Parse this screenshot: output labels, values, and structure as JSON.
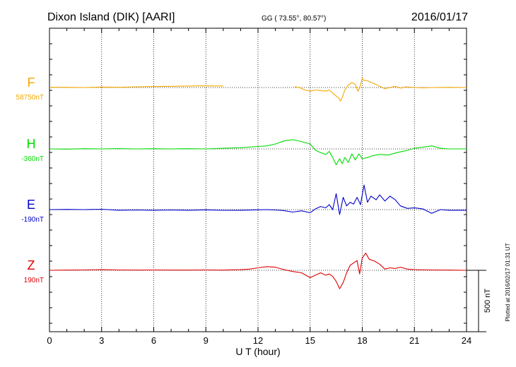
{
  "header": {
    "station": "Dixon Island (DIK)  [AARI]",
    "coords": "GG ( 73.55°,  80.57°)",
    "date": "2016/01/17"
  },
  "footer": {
    "plotted": "Plotted at 2016/02/17 01:31  UT"
  },
  "chart_data": {
    "type": "line",
    "xlabel": "U T (hour)",
    "xlim": [
      0,
      24
    ],
    "xticks": [
      0,
      3,
      6,
      9,
      12,
      15,
      18,
      21,
      24
    ],
    "grid": true,
    "scale_bar": {
      "label": "500 nT",
      "value": 500
    },
    "colors": {
      "F": "#f5a800",
      "H": "#00dd00",
      "E": "#0000cc",
      "Z": "#dd0000"
    },
    "series": [
      {
        "name": "F",
        "baseline": "58750nT",
        "gaps": [
          [
            10.0,
            14.1
          ]
        ],
        "points": [
          [
            0,
            2
          ],
          [
            1,
            2
          ],
          [
            2,
            0
          ],
          [
            3,
            4
          ],
          [
            4,
            2
          ],
          [
            5,
            6
          ],
          [
            6,
            8
          ],
          [
            7,
            10
          ],
          [
            8,
            12
          ],
          [
            9,
            14
          ],
          [
            10,
            12
          ],
          [
            14.1,
            8
          ],
          [
            14.4,
            -2
          ],
          [
            14.7,
            -20
          ],
          [
            15.0,
            -30
          ],
          [
            15.3,
            -20
          ],
          [
            15.6,
            -25
          ],
          [
            15.9,
            -30
          ],
          [
            16.1,
            -20
          ],
          [
            16.3,
            -45
          ],
          [
            16.5,
            -70
          ],
          [
            16.65,
            -85
          ],
          [
            16.75,
            -110
          ],
          [
            16.85,
            -80
          ],
          [
            17.0,
            -20
          ],
          [
            17.2,
            20
          ],
          [
            17.4,
            40
          ],
          [
            17.6,
            25
          ],
          [
            17.75,
            -30
          ],
          [
            17.85,
            -5
          ],
          [
            18.0,
            75
          ],
          [
            18.1,
            55
          ],
          [
            18.2,
            60
          ],
          [
            18.4,
            48
          ],
          [
            18.6,
            35
          ],
          [
            18.8,
            25
          ],
          [
            19.0,
            10
          ],
          [
            19.3,
            -10
          ],
          [
            19.6,
            0
          ],
          [
            19.9,
            10
          ],
          [
            20.2,
            -5
          ],
          [
            20.5,
            5
          ],
          [
            21.0,
            0
          ],
          [
            21.5,
            -3
          ],
          [
            22.0,
            0
          ],
          [
            23.0,
            2
          ],
          [
            24,
            0
          ]
        ]
      },
      {
        "name": "H",
        "baseline": "-360nT",
        "points": [
          [
            0,
            0
          ],
          [
            1,
            -2
          ],
          [
            2,
            2
          ],
          [
            3,
            0
          ],
          [
            4,
            3
          ],
          [
            5,
            0
          ],
          [
            6,
            2
          ],
          [
            7,
            0
          ],
          [
            8,
            2
          ],
          [
            9,
            0
          ],
          [
            10,
            5
          ],
          [
            11,
            10
          ],
          [
            12,
            20
          ],
          [
            12.5,
            25
          ],
          [
            13,
            40
          ],
          [
            13.5,
            65
          ],
          [
            14,
            75
          ],
          [
            14.5,
            60
          ],
          [
            15,
            40
          ],
          [
            15.3,
            -10
          ],
          [
            15.6,
            -30
          ],
          [
            15.9,
            -45
          ],
          [
            16.1,
            -20
          ],
          [
            16.3,
            -70
          ],
          [
            16.5,
            -130
          ],
          [
            16.7,
            -80
          ],
          [
            16.85,
            -120
          ],
          [
            17.0,
            -70
          ],
          [
            17.2,
            -110
          ],
          [
            17.4,
            -40
          ],
          [
            17.6,
            -90
          ],
          [
            17.8,
            -40
          ],
          [
            18.0,
            -80
          ],
          [
            18.3,
            -70
          ],
          [
            18.6,
            -55
          ],
          [
            19.0,
            -45
          ],
          [
            19.5,
            -50
          ],
          [
            20.0,
            -30
          ],
          [
            20.5,
            -15
          ],
          [
            21.0,
            5
          ],
          [
            21.5,
            15
          ],
          [
            22.0,
            25
          ],
          [
            22.5,
            5
          ],
          [
            23.0,
            0
          ],
          [
            24,
            0
          ]
        ]
      },
      {
        "name": "E",
        "baseline": "-190nT",
        "points": [
          [
            0,
            0
          ],
          [
            1,
            2
          ],
          [
            2,
            0
          ],
          [
            3,
            3
          ],
          [
            4,
            -5
          ],
          [
            5,
            -3
          ],
          [
            6,
            -5
          ],
          [
            7,
            -3
          ],
          [
            8,
            -5
          ],
          [
            9,
            -2
          ],
          [
            10,
            -6
          ],
          [
            11,
            -5
          ],
          [
            12,
            -2
          ],
          [
            12.5,
            0
          ],
          [
            13,
            -3
          ],
          [
            13.5,
            -8
          ],
          [
            14,
            -20
          ],
          [
            14.5,
            -10
          ],
          [
            15,
            -25
          ],
          [
            15.3,
            5
          ],
          [
            15.6,
            25
          ],
          [
            15.9,
            15
          ],
          [
            16.1,
            40
          ],
          [
            16.3,
            0
          ],
          [
            16.5,
            130
          ],
          [
            16.7,
            -40
          ],
          [
            16.9,
            100
          ],
          [
            17.1,
            30
          ],
          [
            17.3,
            60
          ],
          [
            17.5,
            45
          ],
          [
            17.7,
            100
          ],
          [
            17.9,
            40
          ],
          [
            18.1,
            200
          ],
          [
            18.3,
            60
          ],
          [
            18.5,
            110
          ],
          [
            18.8,
            80
          ],
          [
            19.0,
            120
          ],
          [
            19.3,
            70
          ],
          [
            19.6,
            110
          ],
          [
            19.9,
            80
          ],
          [
            20.2,
            30
          ],
          [
            20.6,
            10
          ],
          [
            21.0,
            15
          ],
          [
            21.5,
            5
          ],
          [
            22.0,
            -30
          ],
          [
            22.5,
            0
          ],
          [
            23.0,
            -5
          ],
          [
            24,
            -5
          ]
        ]
      },
      {
        "name": "Z",
        "baseline": "190nT",
        "points": [
          [
            0,
            0
          ],
          [
            1,
            2
          ],
          [
            2,
            3
          ],
          [
            3,
            5
          ],
          [
            4,
            3
          ],
          [
            5,
            2
          ],
          [
            6,
            3
          ],
          [
            7,
            2
          ],
          [
            8,
            2
          ],
          [
            9,
            3
          ],
          [
            10,
            2
          ],
          [
            11,
            5
          ],
          [
            11.5,
            10
          ],
          [
            12,
            20
          ],
          [
            12.5,
            30
          ],
          [
            13,
            25
          ],
          [
            13.5,
            5
          ],
          [
            14,
            -10
          ],
          [
            14.5,
            -20
          ],
          [
            15.0,
            -60
          ],
          [
            15.3,
            -40
          ],
          [
            15.6,
            -20
          ],
          [
            15.9,
            -40
          ],
          [
            16.1,
            -30
          ],
          [
            16.3,
            -50
          ],
          [
            16.5,
            -90
          ],
          [
            16.7,
            -150
          ],
          [
            16.9,
            -100
          ],
          [
            17.1,
            -20
          ],
          [
            17.3,
            40
          ],
          [
            17.5,
            60
          ],
          [
            17.7,
            80
          ],
          [
            17.85,
            -30
          ],
          [
            18.0,
            100
          ],
          [
            18.2,
            140
          ],
          [
            18.4,
            90
          ],
          [
            18.7,
            75
          ],
          [
            19.0,
            50
          ],
          [
            19.3,
            10
          ],
          [
            19.6,
            20
          ],
          [
            19.9,
            15
          ],
          [
            20.2,
            25
          ],
          [
            20.6,
            10
          ],
          [
            21.0,
            5
          ],
          [
            22.0,
            3
          ],
          [
            23.0,
            2
          ],
          [
            24,
            0
          ]
        ]
      }
    ]
  }
}
